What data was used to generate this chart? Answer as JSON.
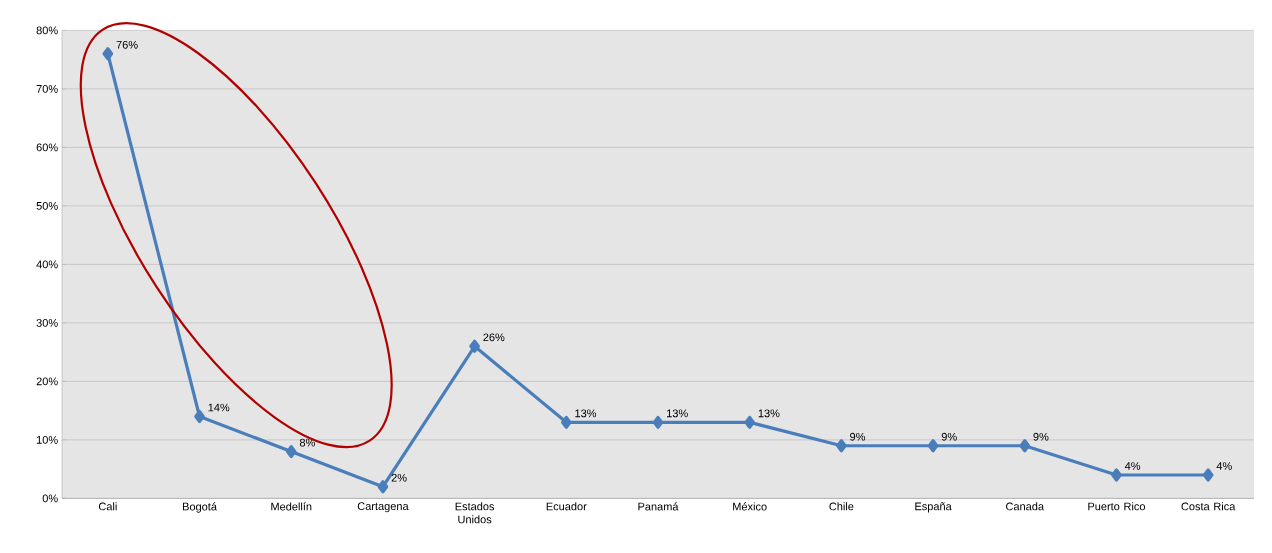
{
  "chart_data": {
    "type": "line",
    "categories": [
      "Cali",
      "Bogotá",
      "Medellín",
      "Cartagena",
      "Estados Unidos",
      "Ecuador",
      "Panamá",
      "México",
      "Chile",
      "España",
      "Canada",
      "Puerto Rico",
      "Costa Rica"
    ],
    "values": [
      76,
      14,
      8,
      2,
      26,
      13,
      13,
      13,
      9,
      9,
      9,
      4,
      4
    ],
    "value_labels": [
      "76%",
      "14%",
      "8%",
      "2%",
      "26%",
      "13%",
      "13%",
      "13%",
      "9%",
      "9%",
      "9%",
      "4%",
      "4%"
    ],
    "color": "#4a7ebb",
    "ylim": [
      0,
      80
    ],
    "yticks": [
      {
        "value": 0,
        "label": "0%"
      },
      {
        "value": 10,
        "label": "10%"
      },
      {
        "value": 20,
        "label": "20%"
      },
      {
        "value": 30,
        "label": "30%"
      },
      {
        "value": 40,
        "label": "40%"
      },
      {
        "value": 50,
        "label": "50%"
      },
      {
        "value": 60,
        "label": "60%"
      },
      {
        "value": 70,
        "label": "70%"
      },
      {
        "value": 80,
        "label": "80%"
      }
    ],
    "grid": "y",
    "marker": "diamond",
    "line_style": "solid"
  }
}
